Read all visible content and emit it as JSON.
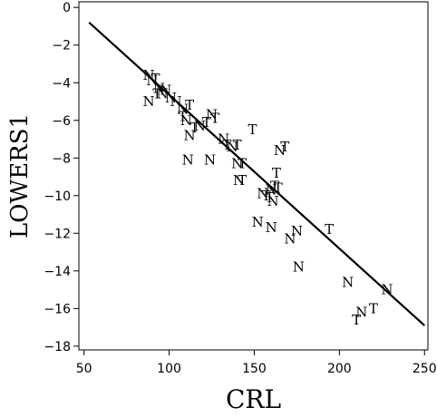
{
  "chart_data": {
    "type": "scatter",
    "title": "",
    "xlabel": "CRL",
    "ylabel": "LOWERS1",
    "xlim": [
      47,
      252
    ],
    "ylim": [
      -18.2,
      0.3
    ],
    "xticks": [
      50,
      100,
      150,
      200,
      250
    ],
    "yticks": [
      0,
      -2,
      -4,
      -6,
      -8,
      -10,
      -12,
      -14,
      -16,
      -18
    ],
    "grid": false,
    "legend": "none",
    "marker_style": "letter",
    "fit_line": {
      "x": [
        53,
        250
      ],
      "y": [
        -0.8,
        -16.9
      ]
    },
    "points": [
      {
        "x": 88,
        "y": -3.6,
        "label": "N"
      },
      {
        "x": 90,
        "y": -3.9,
        "label": "N"
      },
      {
        "x": 92,
        "y": -3.8,
        "label": "T"
      },
      {
        "x": 94,
        "y": -4.3,
        "label": "N"
      },
      {
        "x": 96,
        "y": -4.6,
        "label": "N"
      },
      {
        "x": 98,
        "y": -4.4,
        "label": "N"
      },
      {
        "x": 88,
        "y": -5.0,
        "label": "N"
      },
      {
        "x": 93,
        "y": -4.6,
        "label": "T"
      },
      {
        "x": 101,
        "y": -4.8,
        "label": "N"
      },
      {
        "x": 104,
        "y": -5.0,
        "label": "N"
      },
      {
        "x": 108,
        "y": -5.4,
        "label": "N"
      },
      {
        "x": 112,
        "y": -5.2,
        "label": "T"
      },
      {
        "x": 108,
        "y": -5.8,
        "label": "T"
      },
      {
        "x": 110,
        "y": -6.0,
        "label": "N"
      },
      {
        "x": 115,
        "y": -6.4,
        "label": "T"
      },
      {
        "x": 112,
        "y": -6.8,
        "label": "N"
      },
      {
        "x": 118,
        "y": -6.3,
        "label": "N"
      },
      {
        "x": 122,
        "y": -6.1,
        "label": "T"
      },
      {
        "x": 125,
        "y": -5.7,
        "label": "N"
      },
      {
        "x": 127,
        "y": -5.9,
        "label": "T"
      },
      {
        "x": 132,
        "y": -7.0,
        "label": "N"
      },
      {
        "x": 134,
        "y": -7.3,
        "label": "T"
      },
      {
        "x": 137,
        "y": -7.4,
        "label": "N"
      },
      {
        "x": 140,
        "y": -7.3,
        "label": "T"
      },
      {
        "x": 111,
        "y": -8.1,
        "label": "N"
      },
      {
        "x": 124,
        "y": -8.1,
        "label": "N"
      },
      {
        "x": 140,
        "y": -8.3,
        "label": "N"
      },
      {
        "x": 143,
        "y": -8.3,
        "label": "T"
      },
      {
        "x": 141,
        "y": -9.2,
        "label": "N"
      },
      {
        "x": 143,
        "y": -9.2,
        "label": "T"
      },
      {
        "x": 149,
        "y": -6.5,
        "label": "T"
      },
      {
        "x": 165,
        "y": -7.6,
        "label": "N"
      },
      {
        "x": 168,
        "y": -7.4,
        "label": "T"
      },
      {
        "x": 163,
        "y": -8.8,
        "label": "T"
      },
      {
        "x": 155,
        "y": -9.9,
        "label": "N"
      },
      {
        "x": 157,
        "y": -10.0,
        "label": "T"
      },
      {
        "x": 160,
        "y": -9.7,
        "label": "N"
      },
      {
        "x": 162,
        "y": -9.5,
        "label": "T"
      },
      {
        "x": 164,
        "y": -9.6,
        "label": "T"
      },
      {
        "x": 159,
        "y": -10.1,
        "label": "T"
      },
      {
        "x": 161,
        "y": -10.3,
        "label": "N"
      },
      {
        "x": 152,
        "y": -11.4,
        "label": "N"
      },
      {
        "x": 160,
        "y": -11.7,
        "label": "N"
      },
      {
        "x": 171,
        "y": -12.3,
        "label": "N"
      },
      {
        "x": 175,
        "y": -11.9,
        "label": "N"
      },
      {
        "x": 194,
        "y": -11.8,
        "label": "T"
      },
      {
        "x": 176,
        "y": -13.8,
        "label": "N"
      },
      {
        "x": 205,
        "y": -14.6,
        "label": "N"
      },
      {
        "x": 228,
        "y": -15.0,
        "label": "N"
      },
      {
        "x": 220,
        "y": -16.0,
        "label": "T"
      },
      {
        "x": 213,
        "y": -16.2,
        "label": "N"
      },
      {
        "x": 210,
        "y": -16.6,
        "label": "T"
      }
    ]
  }
}
